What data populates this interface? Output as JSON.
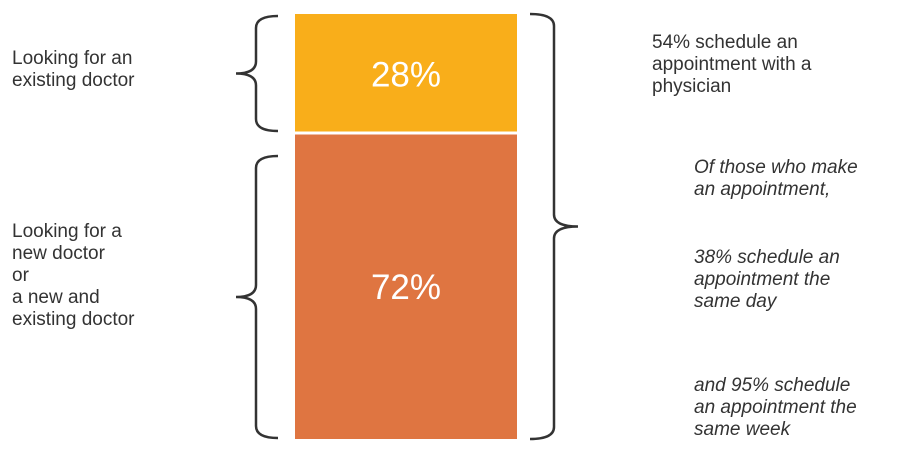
{
  "chart_data": {
    "type": "bar",
    "categories": [
      "Looking for an existing doctor",
      "Looking for a new doctor or a new and existing doctor"
    ],
    "values": [
      28,
      72
    ],
    "value_labels": [
      "28%",
      "72%"
    ],
    "colors": [
      "#F9AE1A",
      "#DF7541"
    ],
    "stacked": true,
    "ylim": [
      0,
      100
    ]
  },
  "left_labels": {
    "existing": "Looking for an\nexisting doctor",
    "new": "Looking for a\nnew doctor\nor\na new and\nexisting doctor"
  },
  "right_text": {
    "summary": "54% schedule an\nappointment with a\nphysician",
    "note_1": "Of those who make\nan appointment,",
    "note_2": "38% schedule an\nappointment the\nsame day",
    "note_3": "and  95% schedule\nan appointment the\nsame week"
  },
  "colors": {
    "text": "#333333",
    "bracket": "#333333",
    "divider": "#ffffff"
  }
}
